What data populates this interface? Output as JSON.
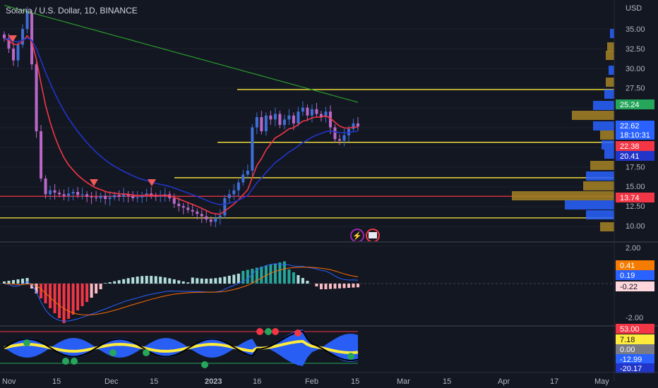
{
  "title": "Solana / U.S. Dollar, 1D, BINANCE",
  "colors": {
    "background": "#131722",
    "up": "#3f6fd6",
    "down": "#ba68c8",
    "ema_fast": "#f23645",
    "ema_mid": "#2135c9",
    "ema_slow": "#2a9d2a",
    "hline": "#ffeb3b",
    "hline_red": "#f23645",
    "grid": "#1e222d",
    "volprof_a": "#a78324",
    "volprof_b": "#2962ff"
  },
  "chart_data": [
    {
      "type": "line",
      "name": "main",
      "title": "Solana / U.S. Dollar, 1D, BINANCE",
      "y_unit": "USD",
      "ylim": [
        7.5,
        37.5
      ],
      "yticks": [
        "35.00",
        "32.50",
        "30.00",
        "27.50",
        "25.24",
        "22.62",
        "18:10:31",
        "22.38",
        "20.41",
        "17.50",
        "15.00",
        "13.74",
        "12.50",
        "10.00"
      ],
      "x_ticks": [
        "Nov",
        "15",
        "Dec",
        "15",
        "2023",
        "16",
        "Feb",
        "15",
        "Mar",
        "15",
        "Apr",
        "17",
        "May"
      ],
      "ohlc_close_approx": [
        33.8,
        32.5,
        31.0,
        33.0,
        35.0,
        37.0,
        30.5,
        22.0,
        16.0,
        14.0,
        14.5,
        14.2,
        14.0,
        13.8,
        14.1,
        14.3,
        13.9,
        14.0,
        13.7,
        13.6,
        13.5,
        13.8,
        13.4,
        13.6,
        13.9,
        13.7,
        14.0,
        13.8,
        13.5,
        13.6,
        13.9,
        14.1,
        13.8,
        13.7,
        13.9,
        14.0,
        13.5,
        12.8,
        12.5,
        12.3,
        12.0,
        11.8,
        11.5,
        11.2,
        10.8,
        10.5,
        11.0,
        11.3,
        13.5,
        14.0,
        14.5,
        15.5,
        16.5,
        17.0,
        22.5,
        23.8,
        22.0,
        24.0,
        23.5,
        24.2,
        22.8,
        23.5,
        24.0,
        23.0,
        24.5,
        25.0,
        24.0,
        24.8,
        24.2,
        23.8,
        24.5,
        22.5,
        21.0,
        20.8,
        21.5,
        22.3,
        23.0,
        22.62
      ],
      "ema_fast_label": "22.38",
      "ema_mid_label": "20.41",
      "ema_slow_label": "25.24",
      "last_price": "22.62",
      "countdown": "18:10:31",
      "hlines": [
        {
          "price": 27.3,
          "color": "yellow"
        },
        {
          "price": 20.6,
          "color": "yellow"
        },
        {
          "price": 16.1,
          "color": "yellow"
        },
        {
          "price": 13.74,
          "color": "red"
        },
        {
          "price": 11.0,
          "color": "yellow"
        }
      ],
      "tags": [
        {
          "text": "25.24",
          "bg": "#26a65b",
          "fg": "#ffffff"
        },
        {
          "text": "22.62",
          "bg": "#2962ff",
          "fg": "#ffffff"
        },
        {
          "text": "18:10:31",
          "bg": "#2962ff",
          "fg": "#ffffff"
        },
        {
          "text": "22.38",
          "bg": "#f23645",
          "fg": "#ffffff"
        },
        {
          "text": "20.41",
          "bg": "#2135c9",
          "fg": "#ffffff"
        },
        {
          "text": "13.74",
          "bg": "#f23645",
          "fg": "#ffffff"
        }
      ]
    },
    {
      "type": "bar",
      "name": "macd",
      "yticks": [
        "2.00",
        "-2.00"
      ],
      "tags": [
        {
          "text": "0.41",
          "bg": "#f57c00",
          "fg": "#ffffff"
        },
        {
          "text": "0.19",
          "bg": "#2962ff",
          "fg": "#ffffff"
        },
        {
          "text": "-0.22",
          "bg": "#fdd7dc",
          "fg": "#131722"
        }
      ]
    },
    {
      "type": "area",
      "name": "oscillator",
      "tags": [
        {
          "text": "53.00",
          "bg": "#f23645",
          "fg": "#ffffff"
        },
        {
          "text": "7.18",
          "bg": "#ffeb3b",
          "fg": "#131722"
        },
        {
          "text": "0.00",
          "bg": "#787b86",
          "fg": "#ffffff"
        },
        {
          "text": "-12.99",
          "bg": "#2962ff",
          "fg": "#ffffff"
        },
        {
          "text": "-20.17",
          "bg": "#2135c9",
          "fg": "#ffffff"
        }
      ]
    }
  ],
  "axis": {
    "currency": "USD"
  },
  "icons": [
    "lightning-icon",
    "flag-icon"
  ]
}
